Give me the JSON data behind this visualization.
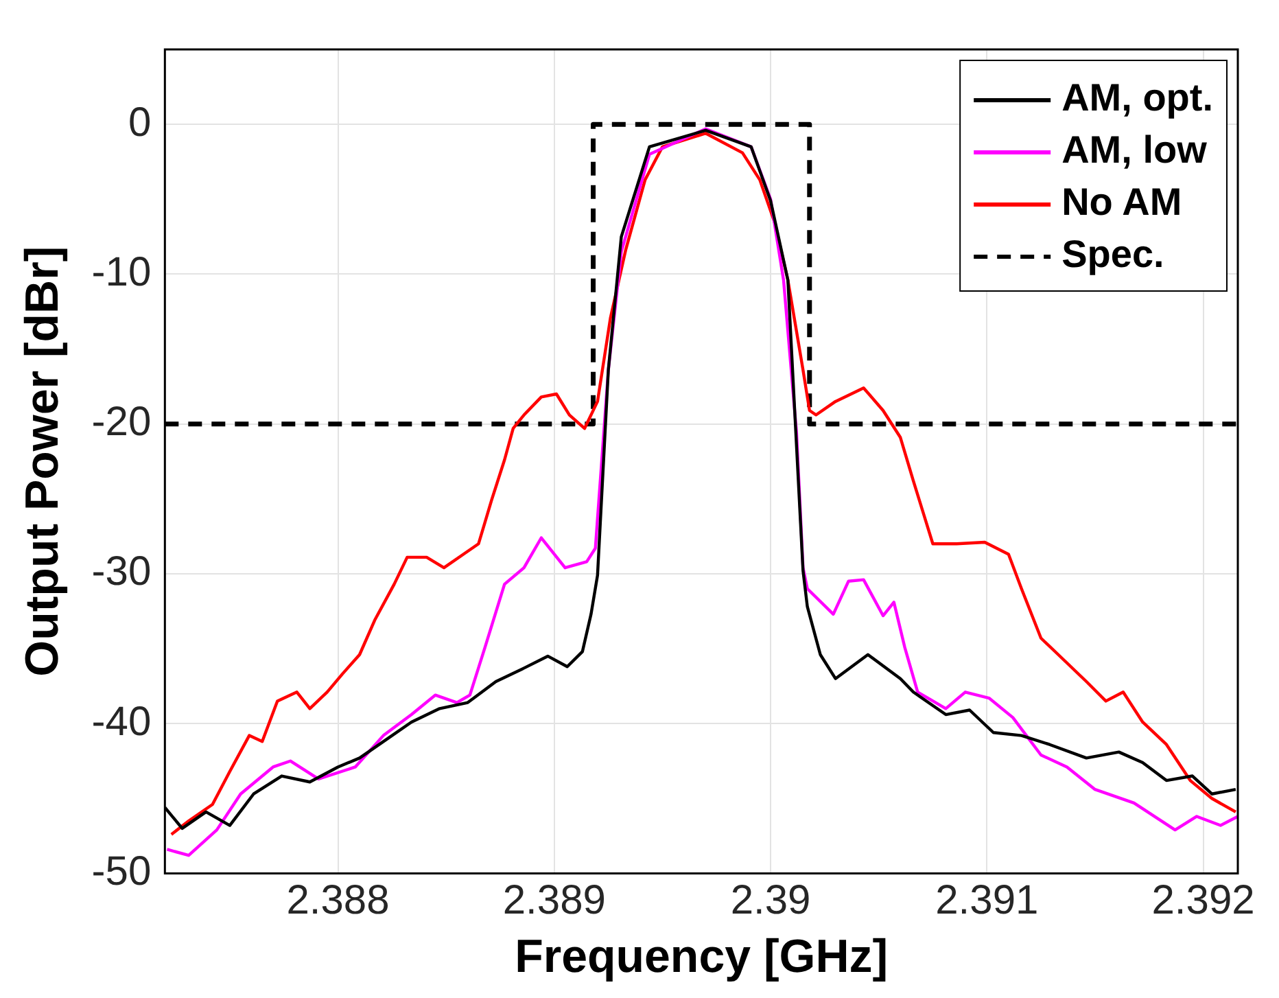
{
  "chart_data": {
    "type": "line",
    "xlabel": "Frequency [GHz]",
    "ylabel": "Output Power [dBr]",
    "xlim": [
      2.3872,
      2.39216
    ],
    "xticks": [
      2.388,
      2.389,
      2.39,
      2.391,
      2.392
    ],
    "ylim": [
      -50,
      5
    ],
    "yticks": [
      -50,
      -40,
      -30,
      -20,
      -10,
      0
    ],
    "grid": true,
    "legend": "top right",
    "marker": "none",
    "series": [
      {
        "name": "AM, opt.",
        "color": "#000000",
        "x": [
          2.3872,
          2.38728,
          2.38739,
          2.3875,
          2.38761,
          2.38774,
          2.38787,
          2.388,
          2.3881,
          2.38821,
          2.38834,
          2.38847,
          2.3886,
          2.38873,
          2.38886,
          2.38897,
          2.38906,
          2.38913,
          2.38917,
          2.3892,
          2.38925,
          2.38931,
          2.38944,
          2.3897,
          2.38991,
          2.39,
          2.39008,
          2.39015,
          2.39017,
          2.39023,
          2.3903,
          2.39045,
          2.3906,
          2.39066,
          2.39081,
          2.39092,
          2.39103,
          2.39116,
          2.39129,
          2.39146,
          2.39161,
          2.39172,
          2.39183,
          2.39195,
          2.39204,
          2.39215
        ],
        "values": [
          -45.6,
          -47.0,
          -45.9,
          -46.8,
          -44.7,
          -43.5,
          -43.9,
          -42.9,
          -42.3,
          -41.2,
          -39.9,
          -39.0,
          -38.6,
          -37.2,
          -36.3,
          -35.5,
          -36.2,
          -35.2,
          -32.7,
          -30.1,
          -16.4,
          -7.5,
          -1.5,
          -0.4,
          -1.5,
          -5.1,
          -10.4,
          -29.8,
          -32.2,
          -35.4,
          -37.0,
          -35.4,
          -37.0,
          -37.9,
          -39.4,
          -39.1,
          -40.6,
          -40.8,
          -41.4,
          -42.3,
          -41.9,
          -42.6,
          -43.8,
          -43.5,
          -44.7,
          -44.4
        ]
      },
      {
        "name": "AM, low",
        "color": "#ff00ff",
        "x": [
          2.38721,
          2.38731,
          2.38744,
          2.38755,
          2.3877,
          2.38778,
          2.38791,
          2.38808,
          2.38821,
          2.38834,
          2.38845,
          2.38855,
          2.38861,
          2.38868,
          2.38877,
          2.38886,
          2.38894,
          2.38905,
          2.38915,
          2.38919,
          2.38925,
          2.38931,
          2.38944,
          2.3897,
          2.38991,
          2.39,
          2.39006,
          2.39012,
          2.39015,
          2.39017,
          2.39029,
          2.39036,
          2.39043,
          2.39052,
          2.39057,
          2.39062,
          2.39068,
          2.39081,
          2.3909,
          2.39101,
          2.39112,
          2.39125,
          2.39137,
          2.3915,
          2.39168,
          2.39187,
          2.39197,
          2.39208,
          2.39216
        ],
        "values": [
          -48.4,
          -48.8,
          -47.1,
          -44.7,
          -42.9,
          -42.5,
          -43.7,
          -42.9,
          -40.8,
          -39.4,
          -38.1,
          -38.6,
          -38.1,
          -34.9,
          -30.7,
          -29.6,
          -27.6,
          -29.6,
          -29.2,
          -28.3,
          -16.4,
          -8.5,
          -2.0,
          -0.3,
          -1.5,
          -5.0,
          -10.4,
          -20.6,
          -29.6,
          -31.0,
          -32.7,
          -30.5,
          -30.4,
          -32.8,
          -31.9,
          -34.9,
          -37.9,
          -39.0,
          -37.9,
          -38.3,
          -39.6,
          -42.1,
          -42.9,
          -44.4,
          -45.3,
          -47.1,
          -46.2,
          -46.8,
          -46.2
        ]
      },
      {
        "name": "No AM",
        "color": "#ff0000",
        "x": [
          2.38723,
          2.38731,
          2.38742,
          2.3875,
          2.38759,
          2.38765,
          2.38772,
          2.38781,
          2.38787,
          2.38795,
          2.38802,
          2.3881,
          2.38817,
          2.38826,
          2.38832,
          2.38841,
          2.38849,
          2.38858,
          2.38865,
          2.38871,
          2.38877,
          2.38881,
          2.38886,
          2.38894,
          2.38901,
          2.38907,
          2.38914,
          2.3892,
          2.38926,
          2.38933,
          2.38942,
          2.3895,
          2.3897,
          2.38987,
          2.38995,
          2.39002,
          2.39008,
          2.39015,
          2.39018,
          2.39021,
          2.3903,
          2.39043,
          2.39052,
          2.3906,
          2.39066,
          2.39075,
          2.39086,
          2.39099,
          2.3911,
          2.39116,
          2.39125,
          2.39133,
          2.39146,
          2.39155,
          2.39163,
          2.39172,
          2.39183,
          2.39194,
          2.39204,
          2.39215
        ],
        "values": [
          -47.4,
          -46.5,
          -45.4,
          -43.2,
          -40.8,
          -41.2,
          -38.5,
          -37.9,
          -39.0,
          -37.9,
          -36.7,
          -35.4,
          -33.1,
          -30.7,
          -28.9,
          -28.9,
          -29.6,
          -28.7,
          -28.0,
          -25.1,
          -22.4,
          -20.3,
          -19.4,
          -18.2,
          -18.0,
          -19.4,
          -20.3,
          -18.5,
          -12.9,
          -8.4,
          -3.7,
          -1.5,
          -0.6,
          -1.9,
          -3.7,
          -6.6,
          -10.4,
          -16.4,
          -19.1,
          -19.4,
          -18.5,
          -17.6,
          -19.1,
          -20.9,
          -23.8,
          -28.0,
          -28.0,
          -27.9,
          -28.7,
          -31.0,
          -34.3,
          -35.4,
          -37.2,
          -38.5,
          -37.9,
          -39.9,
          -41.4,
          -43.8,
          -45.0,
          -45.9
        ]
      },
      {
        "name": "Spec.",
        "color": "#000000",
        "line_style": "dashed",
        "x": [
          2.3872,
          2.38918,
          2.38918,
          2.39018,
          2.39018,
          2.39216
        ],
        "values": [
          -20,
          -20,
          0,
          0,
          -20,
          -20
        ]
      }
    ]
  }
}
